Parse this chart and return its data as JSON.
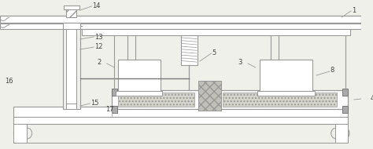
{
  "bg_color": "#f0f0eb",
  "lc": "#999999",
  "lc2": "#bbbbbb",
  "dark": "#777777",
  "lblc": "#444444",
  "figsize": [
    4.74,
    1.9
  ],
  "dpi": 100
}
